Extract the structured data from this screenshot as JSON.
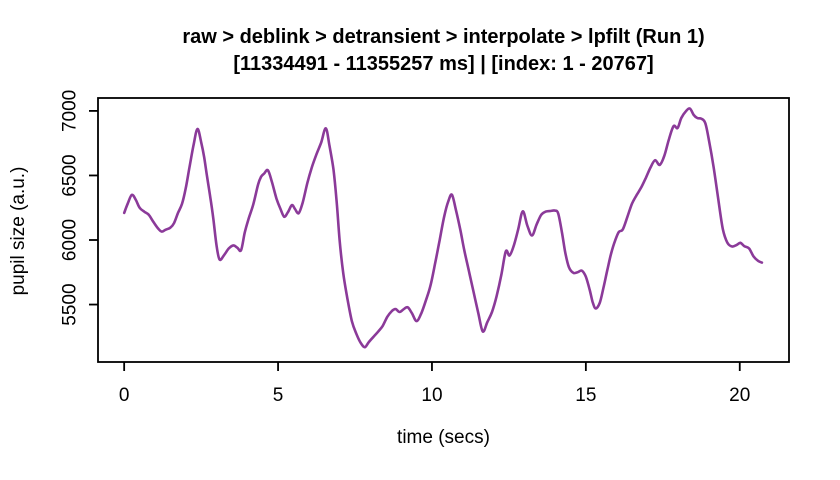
{
  "chart_data": {
    "type": "line",
    "title": "raw > deblink > detransient > interpolate > lpfilt (Run 1)",
    "subtitle": "[11334491 - 11355257 ms] | [index: 1 - 20767]",
    "xlabel": "time (secs)",
    "ylabel": "pupil size (a.u.)",
    "x_ticks": [
      0,
      5,
      10,
      15,
      20
    ],
    "y_ticks": [
      5500,
      6000,
      6500,
      7000
    ],
    "xlim": [
      -0.85,
      21.6
    ],
    "ylim": [
      5055,
      7100
    ],
    "grid": false,
    "legend": "none",
    "background_color": "#ffffff",
    "axis_color": "#000000",
    "line_color": "#8B3A99",
    "line_width": 2.6,
    "series": [
      {
        "name": "pupil size",
        "x": [
          0,
          0.12,
          0.25,
          0.38,
          0.5,
          0.65,
          0.8,
          0.95,
          1.1,
          1.22,
          1.35,
          1.5,
          1.62,
          1.75,
          1.88,
          2.0,
          2.12,
          2.25,
          2.38,
          2.5,
          2.6,
          2.7,
          2.8,
          2.9,
          3.0,
          3.1,
          3.25,
          3.4,
          3.55,
          3.68,
          3.8,
          3.92,
          4.05,
          4.2,
          4.35,
          4.45,
          4.55,
          4.67,
          4.8,
          4.95,
          5.08,
          5.2,
          5.32,
          5.45,
          5.55,
          5.67,
          5.8,
          5.95,
          6.1,
          6.25,
          6.4,
          6.55,
          6.67,
          6.8,
          6.9,
          7.0,
          7.12,
          7.25,
          7.4,
          7.55,
          7.68,
          7.82,
          7.95,
          8.1,
          8.25,
          8.4,
          8.55,
          8.7,
          8.82,
          8.95,
          9.1,
          9.22,
          9.35,
          9.5,
          9.65,
          9.8,
          9.95,
          10.1,
          10.25,
          10.4,
          10.53,
          10.65,
          10.78,
          10.92,
          11.05,
          11.2,
          11.35,
          11.5,
          11.65,
          11.8,
          11.95,
          12.1,
          12.25,
          12.4,
          12.52,
          12.65,
          12.8,
          12.95,
          13.1,
          13.25,
          13.4,
          13.55,
          13.7,
          13.85,
          14.0,
          14.1,
          14.22,
          14.33,
          14.45,
          14.6,
          14.75,
          14.87,
          15.0,
          15.12,
          15.22,
          15.32,
          15.45,
          15.57,
          15.7,
          15.82,
          15.95,
          16.07,
          16.2,
          16.35,
          16.5,
          16.65,
          16.8,
          16.95,
          17.1,
          17.25,
          17.4,
          17.55,
          17.7,
          17.85,
          17.98,
          18.1,
          18.25,
          18.38,
          18.5,
          18.62,
          18.75,
          18.88,
          19.0,
          19.15,
          19.3,
          19.45,
          19.6,
          19.75,
          19.9,
          20.02,
          20.15,
          20.3,
          20.45,
          20.6,
          20.72
        ],
        "y": [
          6210,
          6285,
          6350,
          6310,
          6250,
          6220,
          6195,
          6140,
          6090,
          6065,
          6080,
          6095,
          6130,
          6210,
          6280,
          6400,
          6560,
          6730,
          6860,
          6760,
          6640,
          6480,
          6330,
          6160,
          5960,
          5848,
          5885,
          5935,
          5958,
          5940,
          5922,
          6060,
          6170,
          6280,
          6430,
          6490,
          6515,
          6540,
          6450,
          6320,
          6240,
          6180,
          6215,
          6270,
          6240,
          6208,
          6290,
          6440,
          6565,
          6665,
          6755,
          6865,
          6730,
          6545,
          6310,
          6000,
          5740,
          5550,
          5370,
          5270,
          5205,
          5170,
          5210,
          5250,
          5290,
          5335,
          5405,
          5450,
          5465,
          5442,
          5468,
          5478,
          5432,
          5372,
          5430,
          5530,
          5645,
          5815,
          6000,
          6185,
          6300,
          6350,
          6230,
          6080,
          5920,
          5760,
          5600,
          5440,
          5292,
          5365,
          5442,
          5565,
          5725,
          5912,
          5880,
          5950,
          6080,
          6222,
          6110,
          6035,
          6120,
          6195,
          6220,
          6225,
          6228,
          6205,
          6065,
          5905,
          5790,
          5745,
          5752,
          5762,
          5715,
          5620,
          5520,
          5470,
          5512,
          5628,
          5770,
          5895,
          5995,
          6062,
          6082,
          6180,
          6282,
          6348,
          6408,
          6482,
          6562,
          6618,
          6582,
          6652,
          6782,
          6882,
          6868,
          6945,
          6998,
          7018,
          6970,
          6945,
          6940,
          6905,
          6770,
          6565,
          6320,
          6085,
          5978,
          5950,
          5962,
          5978,
          5952,
          5935,
          5872,
          5838,
          5825
        ]
      }
    ]
  }
}
